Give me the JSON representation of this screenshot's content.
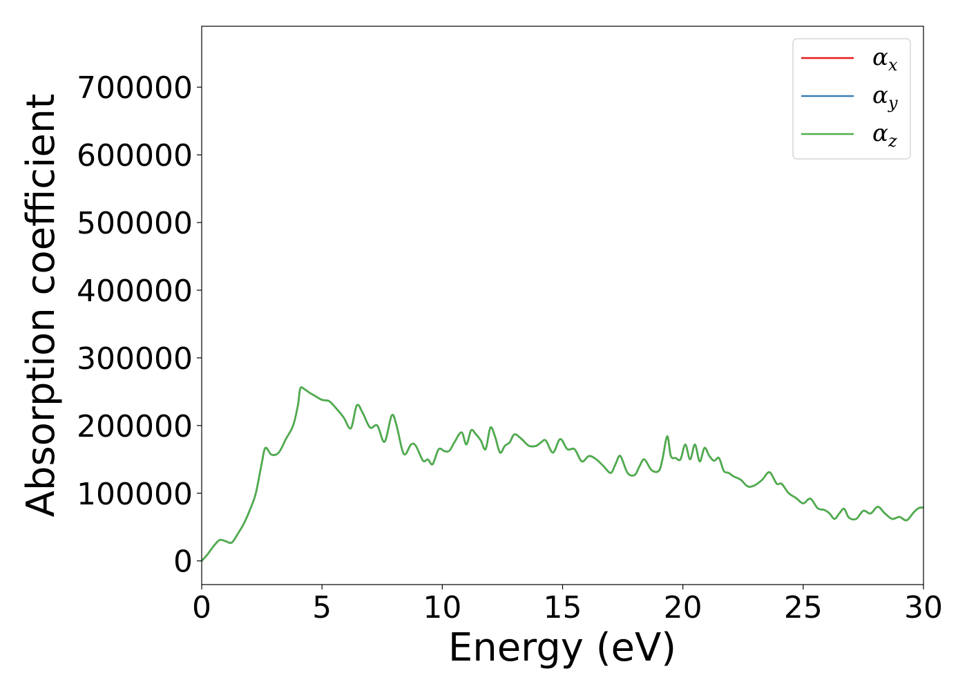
{
  "chart_data": {
    "type": "line",
    "xlabel": "Energy (eV)",
    "ylabel": "Absorption coefficient",
    "xlim": [
      0,
      30
    ],
    "ylim": [
      -35000,
      790000
    ],
    "x_ticks": [
      0,
      5,
      10,
      15,
      20,
      25,
      30
    ],
    "x_tick_labels": [
      "0",
      "5",
      "10",
      "15",
      "20",
      "25",
      "30"
    ],
    "y_ticks": [
      0,
      100000,
      200000,
      300000,
      400000,
      500000,
      600000,
      700000
    ],
    "y_tick_labels": [
      "0",
      "100000",
      "200000",
      "300000",
      "400000",
      "500000",
      "600000",
      "700000"
    ],
    "grid": false,
    "legend_position": "top-right",
    "x": [
      0,
      0.25,
      0.5,
      0.75,
      1.0,
      1.25,
      1.5,
      1.75,
      2.0,
      2.25,
      2.5,
      2.65,
      2.9,
      3.2,
      3.5,
      3.8,
      4.0,
      4.1,
      4.3,
      4.5,
      4.7,
      5.0,
      5.3,
      5.6,
      5.9,
      6.2,
      6.45,
      6.7,
      7.0,
      7.3,
      7.6,
      7.9,
      8.1,
      8.4,
      8.7,
      8.9,
      9.2,
      9.4,
      9.6,
      9.85,
      10.1,
      10.3,
      10.5,
      10.8,
      11.0,
      11.2,
      11.4,
      11.6,
      11.8,
      12.0,
      12.2,
      12.4,
      12.6,
      12.8,
      13.0,
      13.3,
      13.6,
      13.9,
      14.1,
      14.3,
      14.6,
      14.9,
      15.2,
      15.5,
      15.8,
      16.1,
      16.4,
      16.7,
      17.0,
      17.2,
      17.4,
      17.7,
      18.0,
      18.2,
      18.4,
      18.7,
      19.0,
      19.15,
      19.35,
      19.5,
      19.7,
      19.9,
      20.1,
      20.3,
      20.5,
      20.7,
      20.9,
      21.1,
      21.3,
      21.5,
      21.7,
      21.9,
      22.1,
      22.4,
      22.7,
      23.0,
      23.3,
      23.6,
      23.9,
      24.1,
      24.4,
      24.7,
      25.0,
      25.3,
      25.6,
      25.9,
      26.1,
      26.3,
      26.5,
      26.7,
      26.9,
      27.2,
      27.5,
      27.8,
      28.1,
      28.4,
      28.7,
      29.0,
      29.3,
      29.6,
      29.8,
      30.0
    ],
    "series": [
      {
        "name": "αx",
        "color": "#e41a1c",
        "values": [
          0,
          10000,
          22000,
          31000,
          29000,
          27000,
          40000,
          55000,
          75000,
          100000,
          145000,
          167000,
          157000,
          160000,
          180000,
          200000,
          230000,
          255000,
          253000,
          248000,
          244000,
          238000,
          236000,
          225000,
          212000,
          196000,
          230000,
          218000,
          197000,
          200000,
          176000,
          215000,
          200000,
          158000,
          172000,
          170000,
          148000,
          150000,
          143000,
          165000,
          162000,
          163000,
          175000,
          190000,
          172000,
          193000,
          187000,
          178000,
          165000,
          197000,
          183000,
          160000,
          170000,
          175000,
          187000,
          180000,
          170000,
          170000,
          175000,
          178000,
          160000,
          180000,
          165000,
          165000,
          147000,
          155000,
          150000,
          140000,
          130000,
          143000,
          155000,
          130000,
          127000,
          140000,
          150000,
          134000,
          133000,
          150000,
          184000,
          155000,
          152000,
          150000,
          172000,
          150000,
          172000,
          147000,
          167000,
          155000,
          148000,
          152000,
          133000,
          130000,
          125000,
          120000,
          110000,
          112000,
          120000,
          131000,
          114000,
          114000,
          100000,
          93000,
          85000,
          92000,
          78000,
          75000,
          70000,
          62000,
          70000,
          77000,
          64000,
          62000,
          74000,
          70000,
          80000,
          70000,
          62000,
          65000,
          60000,
          72000,
          78000,
          79000
        ]
      },
      {
        "name": "αy",
        "color": "#377eb8",
        "values": [
          0,
          10000,
          22000,
          31000,
          29000,
          27000,
          40000,
          55000,
          75000,
          100000,
          145000,
          167000,
          157000,
          160000,
          180000,
          200000,
          230000,
          255000,
          253000,
          248000,
          244000,
          238000,
          236000,
          225000,
          212000,
          196000,
          230000,
          218000,
          197000,
          200000,
          176000,
          215000,
          200000,
          158000,
          172000,
          170000,
          148000,
          150000,
          143000,
          165000,
          162000,
          163000,
          175000,
          190000,
          172000,
          193000,
          187000,
          178000,
          165000,
          197000,
          183000,
          160000,
          170000,
          175000,
          187000,
          180000,
          170000,
          170000,
          175000,
          178000,
          160000,
          180000,
          165000,
          165000,
          147000,
          155000,
          150000,
          140000,
          130000,
          143000,
          155000,
          130000,
          127000,
          140000,
          150000,
          134000,
          133000,
          150000,
          184000,
          155000,
          152000,
          150000,
          172000,
          150000,
          172000,
          147000,
          167000,
          155000,
          148000,
          152000,
          133000,
          130000,
          125000,
          120000,
          110000,
          112000,
          120000,
          131000,
          114000,
          114000,
          100000,
          93000,
          85000,
          92000,
          78000,
          75000,
          70000,
          62000,
          70000,
          77000,
          64000,
          62000,
          74000,
          70000,
          80000,
          70000,
          62000,
          65000,
          60000,
          72000,
          78000,
          79000
        ]
      },
      {
        "name": "αz",
        "color": "#4daf4a",
        "values": [
          0,
          10000,
          22000,
          31000,
          29000,
          27000,
          40000,
          55000,
          75000,
          100000,
          145000,
          167000,
          157000,
          160000,
          180000,
          200000,
          230000,
          255000,
          253000,
          248000,
          244000,
          238000,
          236000,
          225000,
          212000,
          196000,
          230000,
          218000,
          197000,
          200000,
          176000,
          215000,
          200000,
          158000,
          172000,
          170000,
          148000,
          150000,
          143000,
          165000,
          162000,
          163000,
          175000,
          190000,
          172000,
          193000,
          187000,
          178000,
          165000,
          197000,
          183000,
          160000,
          170000,
          175000,
          187000,
          180000,
          170000,
          170000,
          175000,
          178000,
          160000,
          180000,
          165000,
          165000,
          147000,
          155000,
          150000,
          140000,
          130000,
          143000,
          155000,
          130000,
          127000,
          140000,
          150000,
          134000,
          133000,
          150000,
          184000,
          155000,
          152000,
          150000,
          172000,
          150000,
          172000,
          147000,
          167000,
          155000,
          148000,
          152000,
          133000,
          130000,
          125000,
          120000,
          110000,
          112000,
          120000,
          131000,
          114000,
          114000,
          100000,
          93000,
          85000,
          92000,
          78000,
          75000,
          70000,
          62000,
          70000,
          77000,
          64000,
          62000,
          74000,
          70000,
          80000,
          70000,
          62000,
          65000,
          60000,
          72000,
          78000,
          79000
        ]
      }
    ]
  }
}
